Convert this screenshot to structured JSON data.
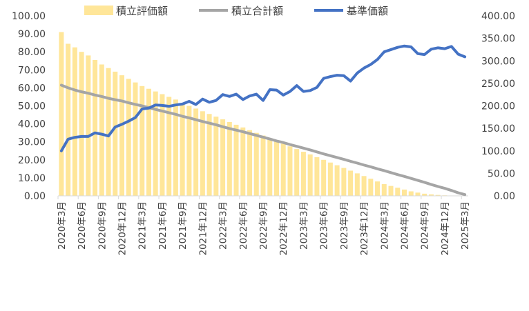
{
  "chart_data": {
    "type": "bar+line",
    "title": "",
    "legend_position": "top",
    "colors": {
      "bar": "#FFE699",
      "total_line": "#A5A5A5",
      "nav_line": "#4472C4",
      "axis": "#D9D9D9"
    },
    "y_left": {
      "min": 0,
      "max": 100,
      "step": 10,
      "ticks": [
        "0.00",
        "10.00",
        "20.00",
        "30.00",
        "40.00",
        "50.00",
        "60.00",
        "70.00",
        "80.00",
        "90.00",
        "100.00"
      ]
    },
    "y_right": {
      "min": 0,
      "max": 400,
      "step": 50,
      "ticks": [
        "0.00",
        "50.00",
        "100.00",
        "150.00",
        "200.00",
        "250.00",
        "300.00",
        "350.00",
        "400.00"
      ]
    },
    "x_tick_labels": [
      "2020年3月",
      "2020年6月",
      "2020年9月",
      "2020年12月",
      "2021年3月",
      "2021年6月",
      "2021年9月",
      "2021年12月",
      "2022年3月",
      "2022年6月",
      "2022年9月",
      "2022年12月",
      "2023年3月",
      "2023年6月",
      "2023年9月",
      "2023年12月",
      "2024年3月",
      "2024年6月",
      "2024年9月",
      "2024年12月",
      "2025年3月"
    ],
    "categories": [
      "2020-03",
      "2020-04",
      "2020-05",
      "2020-06",
      "2020-07",
      "2020-08",
      "2020-09",
      "2020-10",
      "2020-11",
      "2020-12",
      "2021-01",
      "2021-02",
      "2021-03",
      "2021-04",
      "2021-05",
      "2021-06",
      "2021-07",
      "2021-08",
      "2021-09",
      "2021-10",
      "2021-11",
      "2021-12",
      "2022-01",
      "2022-02",
      "2022-03",
      "2022-04",
      "2022-05",
      "2022-06",
      "2022-07",
      "2022-08",
      "2022-09",
      "2022-10",
      "2022-11",
      "2022-12",
      "2023-01",
      "2023-02",
      "2023-03",
      "2023-04",
      "2023-05",
      "2023-06",
      "2023-07",
      "2023-08",
      "2023-09",
      "2023-10",
      "2023-11",
      "2023-12",
      "2024-01",
      "2024-02",
      "2024-03",
      "2024-04",
      "2024-05",
      "2024-06",
      "2024-07",
      "2024-08",
      "2024-09",
      "2024-10",
      "2024-11",
      "2024-12",
      "2025-01",
      "2025-02",
      "2025-03"
    ],
    "series": [
      {
        "name": "積立評価額",
        "kind": "bar",
        "axis": "left",
        "values": [
          91,
          84.5,
          82.5,
          80,
          78,
          75.5,
          73,
          71,
          69,
          67,
          65,
          63,
          61,
          59.5,
          58,
          56.5,
          55,
          53.5,
          51.5,
          50,
          48.5,
          47,
          45.5,
          44,
          42.5,
          41,
          39.5,
          38,
          36.5,
          35,
          33.5,
          32,
          30.5,
          29,
          27.5,
          26,
          24.5,
          23,
          21.5,
          20,
          18.5,
          17,
          15.5,
          14,
          12.5,
          11,
          9.5,
          8,
          6.5,
          5.5,
          4.5,
          3.5,
          2.5,
          1.8,
          1.2,
          0.8,
          0.5,
          0.3,
          0.2,
          0.1,
          0.1
        ]
      },
      {
        "name": "積立合計額",
        "kind": "line",
        "axis": "left",
        "values": [
          61.5,
          60,
          58.8,
          57.8,
          57,
          56,
          55.2,
          54.2,
          53.4,
          52.7,
          51.7,
          50.8,
          50,
          49,
          48,
          47.1,
          46.2,
          45.3,
          44.2,
          43.3,
          42.3,
          41.3,
          40.4,
          39.5,
          38.4,
          37.4,
          36.5,
          35.6,
          34.6,
          33.6,
          32.6,
          31.6,
          30.5,
          29.6,
          28.5,
          27.5,
          26.5,
          25.5,
          24.4,
          23.3,
          22.3,
          21.3,
          20.3,
          19.2,
          18.2,
          17.1,
          16.1,
          15,
          14,
          12.9,
          11.8,
          10.8,
          9.7,
          8.6,
          7.5,
          6.3,
          5.2,
          4.2,
          3,
          1.7,
          0.7
        ]
      },
      {
        "name": "基準価額",
        "kind": "line",
        "axis": "right",
        "values": [
          100,
          126,
          130,
          132,
          132,
          140,
          137,
          133,
          153,
          159,
          166,
          174,
          193,
          195,
          202,
          201,
          199,
          202,
          204,
          210,
          203,
          215,
          208,
          212,
          225,
          221,
          226,
          214,
          222,
          226,
          212,
          236,
          235,
          224,
          232,
          245,
          232,
          234,
          241,
          261,
          265,
          268,
          267,
          255,
          273,
          284,
          292,
          303,
          320,
          325,
          330,
          333,
          331,
          316,
          314,
          326,
          329,
          327,
          332,
          315,
          309
        ]
      }
    ]
  }
}
